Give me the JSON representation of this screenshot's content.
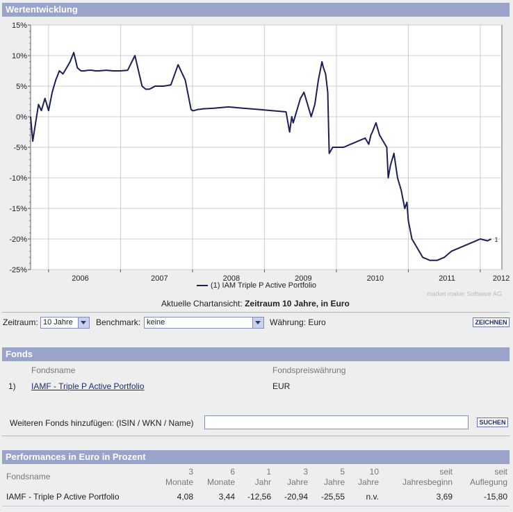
{
  "header": {
    "title": "Wertentwicklung"
  },
  "chart_data": {
    "type": "line",
    "yaxis_ticks": [
      "15%",
      "10%",
      "5%",
      "0%",
      "-5%",
      "-10%",
      "-15%",
      "-20%",
      "-25%"
    ],
    "ylim": [
      -25,
      15
    ],
    "xaxis_ticks": [
      "2006",
      "2007",
      "2008",
      "2009",
      "2010",
      "2011",
      "2012"
    ],
    "x_year_start": [
      2005.75,
      2012.3
    ],
    "grid": true,
    "series": [
      {
        "name": "IAM Triple P Active Portfolio",
        "end_label": "1",
        "color": "#1c1e56",
        "x": [
          2005.75,
          2005.78,
          2005.82,
          2005.86,
          2005.9,
          2005.95,
          2006.0,
          2006.05,
          2006.1,
          2006.15,
          2006.2,
          2006.25,
          2006.3,
          2006.35,
          2006.4,
          2006.45,
          2006.5,
          2006.55,
          2006.6,
          2006.65,
          2006.7,
          2006.8,
          2006.9,
          2007.0,
          2007.1,
          2007.2,
          2007.3,
          2007.35,
          2007.4,
          2007.45,
          2007.48,
          2007.52,
          2007.6,
          2007.7,
          2007.8,
          2007.9,
          2007.95,
          2007.98,
          2008.0,
          2008.02,
          2008.05,
          2008.08,
          2008.1,
          2008.15,
          2008.3,
          2008.5,
          2008.7,
          2008.9,
          2009.1,
          2009.3,
          2009.35,
          2009.38,
          2009.4,
          2009.45,
          2009.5,
          2009.55,
          2009.6,
          2009.65,
          2009.7,
          2009.75,
          2009.8,
          2009.82,
          2009.85,
          2009.88,
          2009.9,
          2009.95,
          2010.0,
          2010.1,
          2010.2,
          2010.3,
          2010.4,
          2010.45,
          2010.48,
          2010.5,
          2010.55,
          2010.6,
          2010.65,
          2010.7,
          2010.72,
          2010.75,
          2010.8,
          2010.85,
          2010.9,
          2010.95,
          2010.98,
          2011.0,
          2011.05,
          2011.1,
          2011.15,
          2011.2,
          2011.3,
          2011.4,
          2011.5,
          2011.6,
          2011.7,
          2011.8,
          2011.9,
          2012.0,
          2012.1,
          2012.15
        ],
        "y": [
          0,
          -4,
          -1,
          2,
          1,
          3,
          1,
          4,
          6,
          7.5,
          7,
          8,
          9,
          10.5,
          8,
          7.5,
          7.5,
          7.6,
          7.6,
          7.5,
          7.5,
          7.6,
          7.5,
          7.5,
          7.6,
          10,
          5,
          4.5,
          4.5,
          4.8,
          5,
          5,
          5,
          5.2,
          8.5,
          6,
          3,
          1.2,
          1,
          1,
          1.1,
          1.2,
          1.2,
          1.3,
          1.4,
          1.6,
          1.4,
          1.2,
          1,
          0.8,
          -2.5,
          0,
          -1,
          1,
          3,
          4,
          2,
          0,
          2,
          6,
          9,
          8,
          7,
          4,
          -6,
          -5,
          -5,
          -5,
          -4.5,
          -4,
          -3.5,
          -4.5,
          -3,
          -2.5,
          -1,
          -3,
          -4,
          -5,
          -10,
          -8,
          -6,
          -10,
          -12,
          -15,
          -14,
          -17,
          -20,
          -21,
          -22,
          -23,
          -23.5,
          -23.5,
          -23,
          -22,
          -21.5,
          -21,
          -20.5,
          -20,
          -20.3,
          -20
        ]
      }
    ]
  },
  "chart_legend": {
    "number": "(1)",
    "name": "IAM Triple P Active Portfolio"
  },
  "chart_credit": "market maker Software AG",
  "current_view": {
    "prefix": "Aktuelle Chartansicht:",
    "value": "Zeitraum 10 Jahre, in Euro"
  },
  "controls": {
    "zeitraum_label": "Zeitraum:",
    "zeitraum_value": "10 Jahre",
    "benchmark_label": "Benchmark:",
    "benchmark_value": "keine",
    "waehrung": "Währung: Euro",
    "draw_button": "ZEICHNEN"
  },
  "fonds": {
    "title": "Fonds",
    "col_name": "Fondsname",
    "col_currency": "Fondspreiswährung",
    "rows": [
      {
        "index": "1)",
        "name": "IAMF - Triple P Active Portfolio",
        "currency": "EUR"
      }
    ],
    "add_label": "Weiteren Fonds hinzufügen: (ISIN / WKN / Name)",
    "add_placeholder": "",
    "search_button": "SUCHEN"
  },
  "performance": {
    "title": "Performances in Euro in Prozent",
    "name_header": "Fondsname",
    "columns": [
      {
        "top": "3",
        "bottom": "Monate"
      },
      {
        "top": "6",
        "bottom": "Monate"
      },
      {
        "top": "1",
        "bottom": "Jahr"
      },
      {
        "top": "3",
        "bottom": "Jahre"
      },
      {
        "top": "5",
        "bottom": "Jahre"
      },
      {
        "top": "10",
        "bottom": "Jahre"
      },
      {
        "top": "seit",
        "bottom": "Jahresbeginn"
      },
      {
        "top": "seit",
        "bottom": "Auflegung"
      }
    ],
    "row": {
      "name": "IAMF - Triple P Active Portfolio",
      "values": [
        "4,08",
        "3,44",
        "-12,56",
        "-20,94",
        "-25,55",
        "n.v.",
        "3,69",
        "-15,80"
      ]
    }
  }
}
